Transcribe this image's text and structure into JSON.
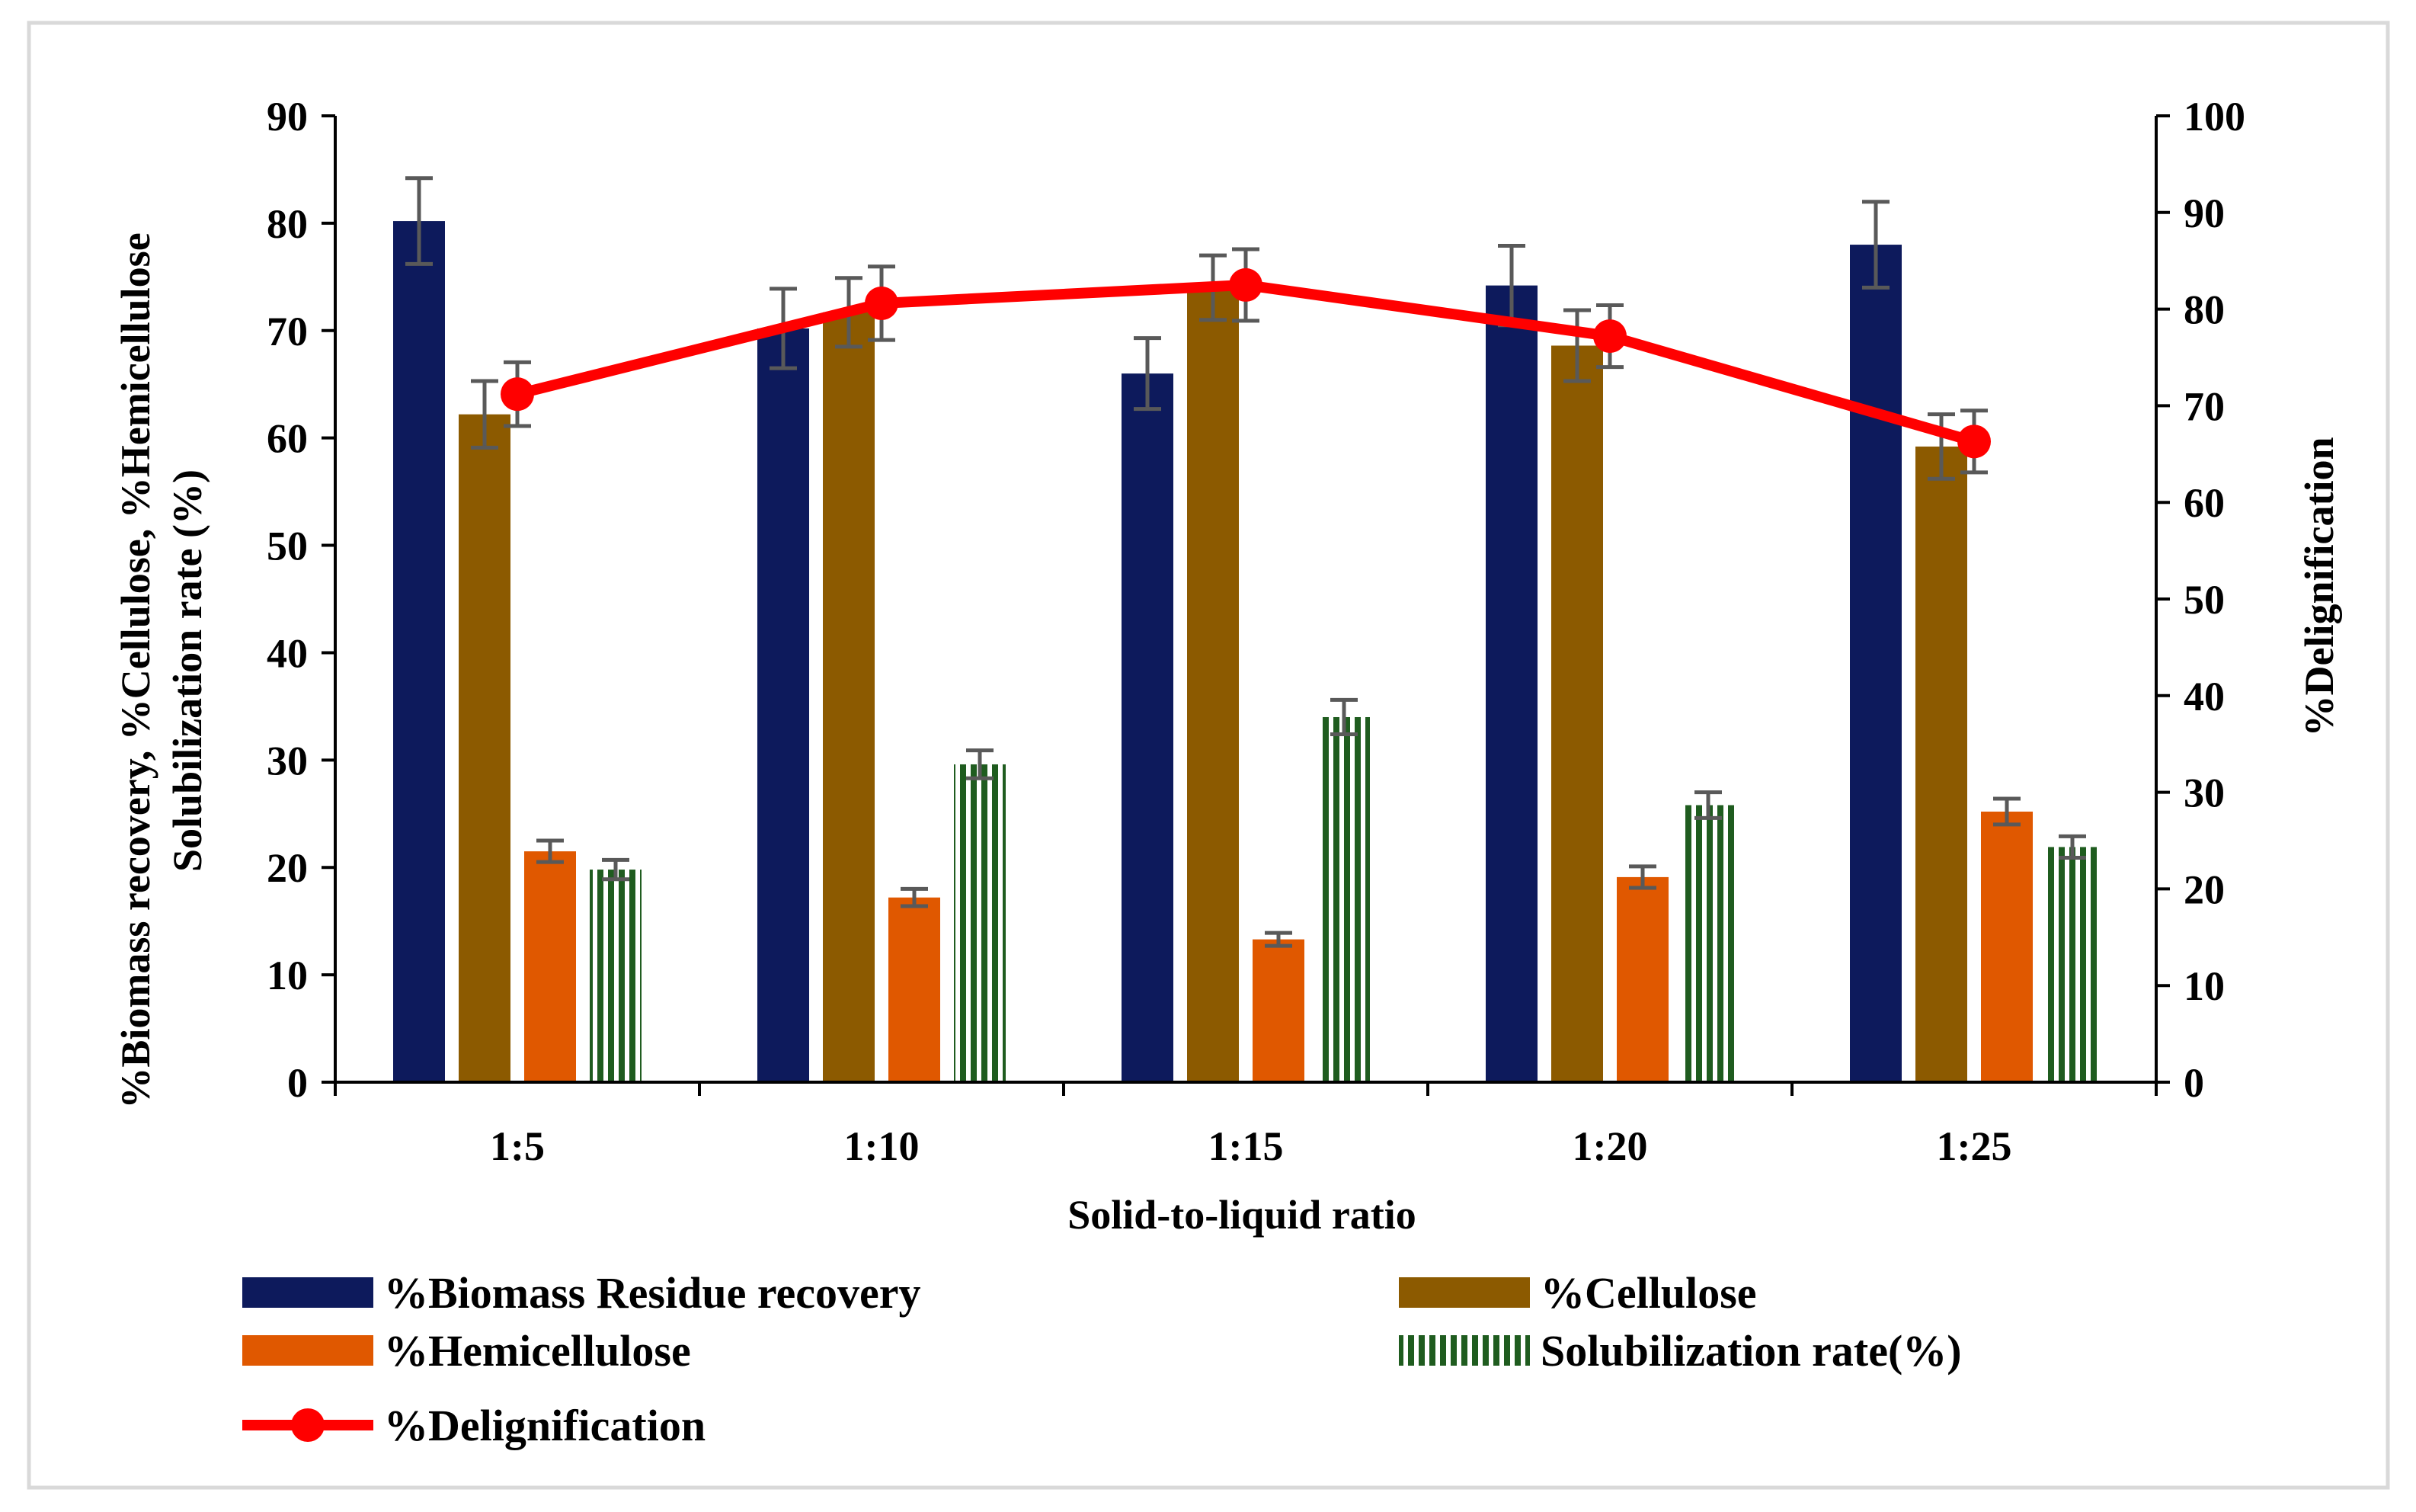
{
  "chart_data": {
    "type": "bar",
    "xlabel": "Solid-to-liquid ratio",
    "ylabel_lines": [
      "%Biomass recovery, %Cellulose, %Hemicellulose",
      "Solubilization rate (%)"
    ],
    "y2label": "%Delignification",
    "categories": [
      "1:5",
      "1:10",
      "1:15",
      "1:20",
      "1:25"
    ],
    "ylim": [
      0,
      90
    ],
    "yticks": [
      "0",
      "10",
      "20",
      "30",
      "40",
      "50",
      "60",
      "70",
      "80",
      "90"
    ],
    "y2lim": [
      0,
      100
    ],
    "y2ticks": [
      "0",
      "10",
      "20",
      "30",
      "40",
      "50",
      "60",
      "70",
      "80",
      "90",
      "100"
    ],
    "grid": false,
    "legend_position": "bottom",
    "series": [
      {
        "name": "%Biomass Residue recovery",
        "kind": "bar",
        "color": "#0d1a5c",
        "pattern": "solid",
        "values": [
          80.2,
          70.2,
          66.0,
          74.2,
          78.0
        ],
        "errors": [
          4.0,
          3.7,
          3.3,
          3.7,
          4.0
        ]
      },
      {
        "name": "%Cellulose",
        "kind": "bar",
        "color": "#8c5a00",
        "pattern": "solid",
        "values": [
          62.2,
          71.7,
          74.0,
          68.6,
          59.2
        ],
        "errors": [
          3.1,
          3.2,
          3.0,
          3.3,
          3.0
        ]
      },
      {
        "name": "%Hemicellulose",
        "kind": "bar",
        "color": "#e05800",
        "pattern": "solid",
        "values": [
          21.5,
          17.2,
          13.3,
          19.1,
          25.2
        ],
        "errors": [
          1.0,
          0.8,
          0.6,
          1.0,
          1.2
        ]
      },
      {
        "name": "Solubilization rate(%)",
        "kind": "bar",
        "color": "#1f5c1f",
        "pattern": "stripes",
        "values": [
          19.8,
          29.6,
          34.0,
          25.8,
          21.9
        ],
        "errors": [
          0.9,
          1.3,
          1.6,
          1.2,
          1.0
        ]
      },
      {
        "name": "%Delignification",
        "kind": "line",
        "axis": "right",
        "color": "#ff0000",
        "values": [
          71.2,
          80.6,
          82.5,
          77.2,
          66.3
        ],
        "errors": [
          3.3,
          3.8,
          3.7,
          3.2,
          3.2
        ]
      }
    ]
  }
}
